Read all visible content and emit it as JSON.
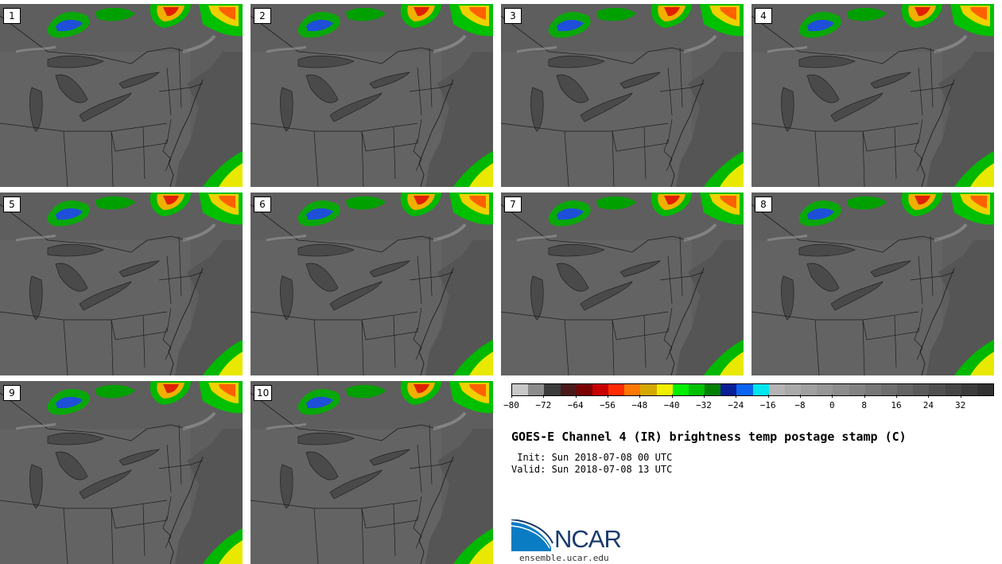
{
  "panels": [
    {
      "label": "1"
    },
    {
      "label": "2"
    },
    {
      "label": "3"
    },
    {
      "label": "4"
    },
    {
      "label": "5"
    },
    {
      "label": "6"
    },
    {
      "label": "7"
    },
    {
      "label": "8"
    },
    {
      "label": "9"
    },
    {
      "label": "10"
    }
  ],
  "colorbar": {
    "colors": [
      "#c8c8c8",
      "#8c8c8c",
      "#3c3c3c",
      "#4a1a1a",
      "#7a0000",
      "#c80000",
      "#ff2a00",
      "#ff7800",
      "#d4a800",
      "#f0f000",
      "#00f000",
      "#00c000",
      "#008000",
      "#0a1e96",
      "#0a64f0",
      "#00e6f0",
      "#b4b4b4",
      "#aaaaaa",
      "#a0a0a0",
      "#969696",
      "#8c8c8c",
      "#828282",
      "#787878",
      "#6e6e6e",
      "#646464",
      "#5a5a5a",
      "#505050",
      "#464646",
      "#3c3c3c",
      "#323232"
    ],
    "ticks": [
      "−80",
      "−72",
      "−64",
      "−56",
      "−48",
      "−40",
      "−32",
      "−24",
      "−16",
      "−8",
      "0",
      "8",
      "16",
      "24",
      "32"
    ]
  },
  "title": "GOES-E Channel 4 (IR) brightness temp postage stamp (C)",
  "init": " Init: Sun 2018-07-08 00 UTC",
  "valid": "Valid: Sun 2018-07-08 13 UTC",
  "logo": {
    "name": "NCAR",
    "url": "ensemble.ucar.edu"
  }
}
